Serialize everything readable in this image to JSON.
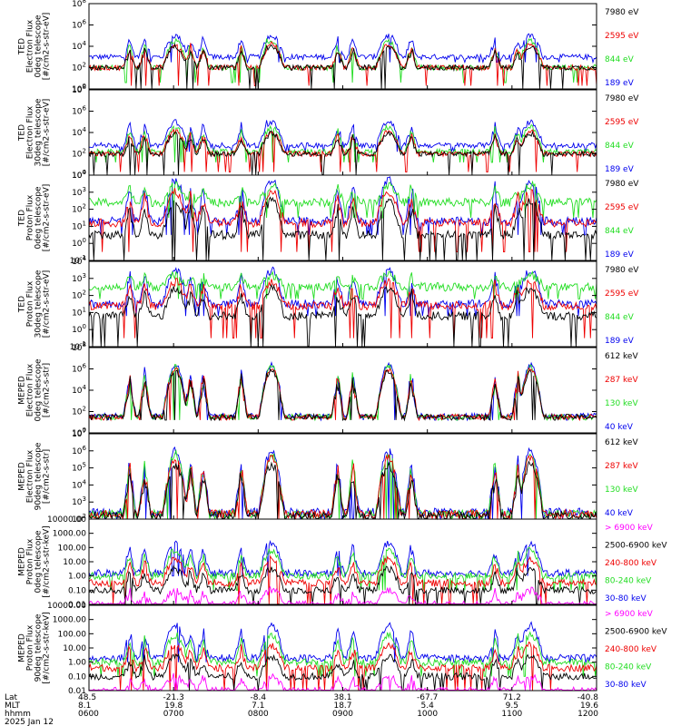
{
  "colors": {
    "black": "#000000",
    "red": "#ee0000",
    "green": "#22dd22",
    "blue": "#0000ee",
    "magenta": "#ff00ff"
  },
  "chart_data": [
    {
      "type": "line",
      "ylabel": [
        "TED",
        "Electron Flux",
        "0deg telescope",
        "[#/cm2-s-str-eV]"
      ],
      "y_tick_labels": [
        "10^0",
        "10^2",
        "10^4",
        "10^6",
        "10^8"
      ],
      "ylim": [
        1,
        100000000
      ],
      "yscale": "log",
      "series": [
        {
          "name": "7980 eV",
          "color": "#000000",
          "base": 2,
          "peak": 4,
          "floor": 0
        },
        {
          "name": "2595 eV",
          "color": "#ee0000",
          "base": 2,
          "peak": 4.2,
          "floor": 0.3
        },
        {
          "name": "844 eV",
          "color": "#22dd22",
          "base": 2,
          "peak": 4.5,
          "floor": 0.6
        },
        {
          "name": "189 eV",
          "color": "#0000ee",
          "base": 3,
          "peak": 5,
          "floor": 2.5
        }
      ]
    },
    {
      "type": "line",
      "ylabel": [
        "TED",
        "Electron Flux",
        "30deg telescope",
        "[#/cm2-s-str-eV]"
      ],
      "y_tick_labels": [
        "10^0",
        "10^2",
        "10^4",
        "10^6",
        "10^8"
      ],
      "ylim": [
        1,
        100000000
      ],
      "yscale": "log",
      "series": [
        {
          "name": "7980 eV",
          "color": "#000000",
          "base": 2,
          "peak": 3.9,
          "floor": 0
        },
        {
          "name": "2595 eV",
          "color": "#ee0000",
          "base": 2,
          "peak": 4.1,
          "floor": 0.3
        },
        {
          "name": "844 eV",
          "color": "#22dd22",
          "base": 2.2,
          "peak": 4.5,
          "floor": 1.2
        },
        {
          "name": "189 eV",
          "color": "#0000ee",
          "base": 2.8,
          "peak": 5,
          "floor": 2.2
        }
      ]
    },
    {
      "type": "line",
      "ylabel": [
        "TED",
        "Proton Flux",
        "0deg telescope",
        "[#/cm2-s-str-eV]"
      ],
      "y_tick_labels": [
        "10^-1",
        "10^0",
        "10^1",
        "10^2",
        "10^3",
        "10^4"
      ],
      "ylim": [
        0.1,
        10000
      ],
      "yscale": "log",
      "series": [
        {
          "name": "7980 eV",
          "color": "#000000",
          "base": 0.5,
          "peak": 2.5,
          "floor": -1
        },
        {
          "name": "2595 eV",
          "color": "#ee0000",
          "base": 1.2,
          "peak": 3,
          "floor": -0.5
        },
        {
          "name": "844 eV",
          "color": "#22dd22",
          "base": 2.4,
          "peak": 3.4,
          "floor": 1.5
        },
        {
          "name": "189 eV",
          "color": "#0000ee",
          "base": 1.3,
          "peak": 3.7,
          "floor": 0.5
        }
      ]
    },
    {
      "type": "line",
      "ylabel": [
        "TED",
        "Proton Flux",
        "30deg telescope",
        "[#/cm2-s-str-eV]"
      ],
      "y_tick_labels": [
        "10^-1",
        "10^0",
        "10^1",
        "10^2",
        "10^3",
        "10^4"
      ],
      "ylim": [
        0.1,
        10000
      ],
      "yscale": "log",
      "series": [
        {
          "name": "7980 eV",
          "color": "#000000",
          "base": 0.8,
          "peak": 2.4,
          "floor": -1
        },
        {
          "name": "2595 eV",
          "color": "#ee0000",
          "base": 1.4,
          "peak": 2.8,
          "floor": -0.5
        },
        {
          "name": "844 eV",
          "color": "#22dd22",
          "base": 2.5,
          "peak": 3.2,
          "floor": 1.8
        },
        {
          "name": "189 eV",
          "color": "#0000ee",
          "base": 1.5,
          "peak": 3.5,
          "floor": 0.8
        }
      ]
    },
    {
      "type": "line",
      "ylabel": [
        "MEPED",
        "Electron Flux",
        "0deg telescope",
        "[#/cm2-s-str]"
      ],
      "y_tick_labels": [
        "10^0",
        "10^2",
        "10^4",
        "10^6",
        "10^8"
      ],
      "ylim": [
        1,
        100000000
      ],
      "yscale": "log",
      "series": [
        {
          "name": "612 keV",
          "color": "#000000",
          "base": 1.5,
          "peak": 5.8,
          "floor": 1.2
        },
        {
          "name": "287 keV",
          "color": "#ee0000",
          "base": 1.5,
          "peak": 6.0,
          "floor": 1.2
        },
        {
          "name": "130 keV",
          "color": "#22dd22",
          "base": 1.5,
          "peak": 6.2,
          "floor": 1.2
        },
        {
          "name": "40 keV",
          "color": "#0000ee",
          "base": 1.6,
          "peak": 6.4,
          "floor": 1.2
        }
      ]
    },
    {
      "type": "line",
      "ylabel": [
        "MEPED",
        "Electron Flux",
        "90deg telescope",
        "[#/cm2-s-str]"
      ],
      "y_tick_labels": [
        "10^2",
        "10^3",
        "10^4",
        "10^5",
        "10^6",
        "10^7"
      ],
      "ylim": [
        100,
        10000000
      ],
      "yscale": "log",
      "series": [
        {
          "name": "612 keV",
          "color": "#000000",
          "base": 2.2,
          "peak": 5.2,
          "floor": 2
        },
        {
          "name": "287 keV",
          "color": "#ee0000",
          "base": 2.3,
          "peak": 5.6,
          "floor": 2
        },
        {
          "name": "130 keV",
          "color": "#22dd22",
          "base": 2.3,
          "peak": 5.8,
          "floor": 2
        },
        {
          "name": "40 keV",
          "color": "#0000ee",
          "base": 2.4,
          "peak": 6.0,
          "floor": 2
        }
      ]
    },
    {
      "type": "line",
      "ylabel": [
        "MEPED",
        "Proton Flux",
        "0deg telescope",
        "[#/cm2-s-str-keV]"
      ],
      "y_tick_labels": [
        "0.01",
        "0.10",
        "1.00",
        "10.00",
        "100.00",
        "1000.00",
        "10000.00"
      ],
      "ylim": [
        0.01,
        10000
      ],
      "yscale": "log",
      "series": [
        {
          "name": "> 6900 keV",
          "color": "#ff00ff",
          "base": -2,
          "peak": -1,
          "floor": -2
        },
        {
          "name": "2500-6900 keV",
          "color": "#000000",
          "base": -1,
          "peak": 0.5,
          "floor": -2
        },
        {
          "name": "240-800 keV",
          "color": "#ee0000",
          "base": -0.5,
          "peak": 1.2,
          "floor": -2
        },
        {
          "name": "80-240 keV",
          "color": "#22dd22",
          "base": 0,
          "peak": 1.8,
          "floor": -1
        },
        {
          "name": "30-80 keV",
          "color": "#0000ee",
          "base": 0.2,
          "peak": 2.3,
          "floor": 0
        }
      ]
    },
    {
      "type": "line",
      "ylabel": [
        "MEPED",
        "Proton Flux",
        "90deg telescope",
        "[#/cm2-s-str-keV]"
      ],
      "y_tick_labels": [
        "0.01",
        "0.10",
        "1.00",
        "10.00",
        "100.00",
        "1000.00",
        "10000.00"
      ],
      "ylim": [
        0.01,
        10000
      ],
      "yscale": "log",
      "series": [
        {
          "name": "> 6900 keV",
          "color": "#ff00ff",
          "base": -2,
          "peak": -1,
          "floor": -2
        },
        {
          "name": "2500-6900 keV",
          "color": "#000000",
          "base": -1,
          "peak": 0.4,
          "floor": -2
        },
        {
          "name": "240-800 keV",
          "color": "#ee0000",
          "base": -0.4,
          "peak": 1.2,
          "floor": -2
        },
        {
          "name": "80-240 keV",
          "color": "#22dd22",
          "base": 0,
          "peak": 1.9,
          "floor": -1
        },
        {
          "name": "30-80 keV",
          "color": "#0000ee",
          "base": 0.3,
          "peak": 2.6,
          "floor": 0
        }
      ]
    }
  ],
  "x_axis": {
    "row_labels": [
      "Lat",
      "MLT",
      "hhmm"
    ],
    "ticks": [
      {
        "lat": "48.5",
        "mlt": "8.1",
        "hhmm": "0600"
      },
      {
        "lat": "-21.3",
        "mlt": "19.8",
        "hhmm": "0700"
      },
      {
        "lat": "-8.4",
        "mlt": "7.1",
        "hhmm": "0800"
      },
      {
        "lat": "38.1",
        "mlt": "18.7",
        "hhmm": "0900"
      },
      {
        "lat": "-67.7",
        "mlt": "5.4",
        "hhmm": "1000"
      },
      {
        "lat": "71.2",
        "mlt": "9.5",
        "hhmm": "1100"
      },
      {
        "lat": "-40.8",
        "mlt": "19.6",
        "hhmm": "1200"
      }
    ],
    "date": "2025 Jan 12"
  }
}
